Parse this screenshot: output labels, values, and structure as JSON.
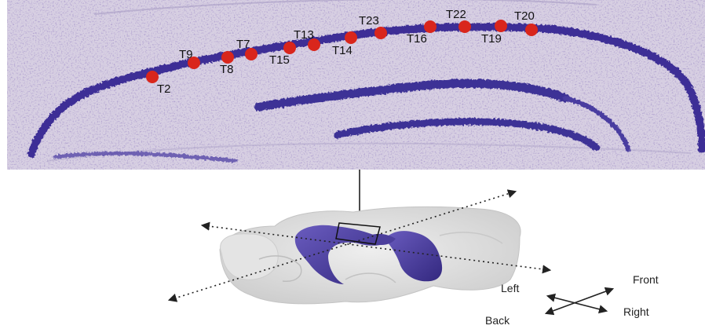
{
  "colors": {
    "tissue_background": "#d9d1e3",
    "cell_layer": "#3d2f96",
    "tetrode_marker": "#d9261c",
    "brain_render": "#dedede",
    "hippocampus_render": "#4c3f9c"
  },
  "tetrodes": [
    {
      "label": "T2"
    },
    {
      "label": "T9"
    },
    {
      "label": "T8"
    },
    {
      "label": "T7"
    },
    {
      "label": "T15"
    },
    {
      "label": "T13"
    },
    {
      "label": "T14"
    },
    {
      "label": "T23"
    },
    {
      "label": "T16"
    },
    {
      "label": "T22"
    },
    {
      "label": "T19"
    },
    {
      "label": "T20"
    }
  ],
  "directions": {
    "left": "Left",
    "front": "Front",
    "back": "Back",
    "right": "Right"
  }
}
